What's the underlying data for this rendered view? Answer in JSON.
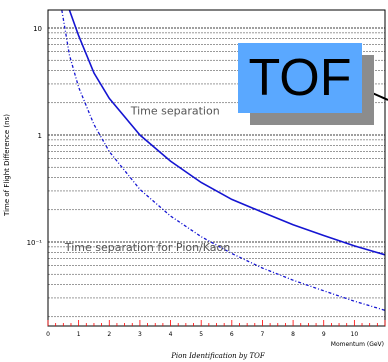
{
  "chart_data": {
    "type": "line",
    "title": "",
    "xlabel": "Momentum (GeV)",
    "ylabel": "Time of Flight Difference (ns)",
    "caption": "Pion Identification by TOF",
    "xlim": [
      0,
      11
    ],
    "ylim": [
      0.01,
      15
    ],
    "yscale": "log",
    "x_ticks": [
      "0",
      "1",
      "2",
      "3",
      "4",
      "5",
      "6",
      "7",
      "8",
      "9",
      "10"
    ],
    "y_ticks": [
      "10",
      "1",
      "10⁻¹"
    ],
    "series": [
      {
        "style": "solid",
        "x": [
          0.7,
          1.0,
          1.5,
          2.0,
          3.0,
          4.0,
          5.0,
          6.0,
          7.0,
          8.0,
          9.0,
          10.0,
          11.0
        ],
        "y": [
          15,
          8.5,
          3.8,
          2.2,
          1.0,
          0.57,
          0.36,
          0.25,
          0.19,
          0.145,
          0.115,
          0.092,
          0.076
        ]
      },
      {
        "style": "dash-dot",
        "x": [
          0.45,
          0.7,
          1.0,
          1.5,
          2.0,
          3.0,
          4.0,
          5.0,
          6.0,
          7.0,
          8.0,
          9.0,
          10.0,
          11.0
        ],
        "y": [
          15,
          5.6,
          2.8,
          1.25,
          0.7,
          0.31,
          0.175,
          0.112,
          0.078,
          0.057,
          0.044,
          0.035,
          0.028,
          0.023
        ]
      }
    ],
    "annotations": [
      {
        "text": "Time separation",
        "x": 2.7,
        "y": 1.55
      },
      {
        "text": "Time separation for Pion/Kaon",
        "x": 0.55,
        "y": 0.082
      }
    ],
    "grid": true
  },
  "callout": {
    "label": "TOF",
    "color": "#5aa8ff"
  },
  "colors": {
    "curve": "#1515d2",
    "grid": "#000000",
    "tick": "#ff0000"
  }
}
